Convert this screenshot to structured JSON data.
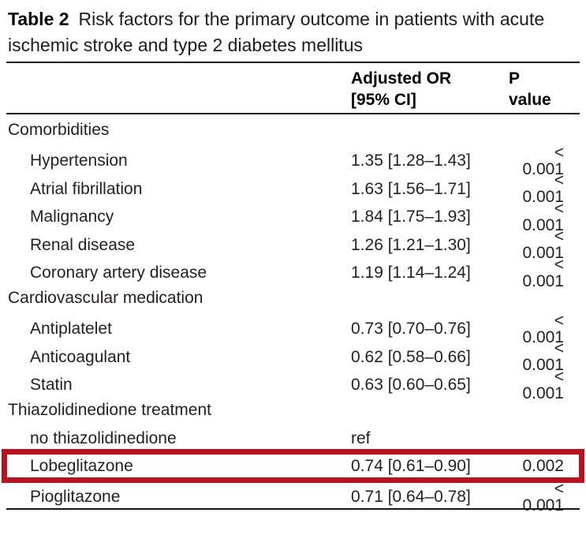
{
  "page": {
    "table_label": "Table 2",
    "table_title": "Risk factors for the primary outcome in patients with acute ischemic stroke and type 2 diabetes mellitus"
  },
  "header": {
    "col_or": "Adjusted OR\n[95% CI]",
    "col_p": "P\nvalue"
  },
  "rows": [
    {
      "type": "section",
      "label": "Comorbidities",
      "or": "",
      "p": ""
    },
    {
      "type": "item",
      "label": "Hypertension",
      "or": "1.35 [1.28–1.43]",
      "p": "< 0.001"
    },
    {
      "type": "item",
      "label": "Atrial fibrillation",
      "or": "1.63 [1.56–1.71]",
      "p": "< 0.001"
    },
    {
      "type": "item",
      "label": "Malignancy",
      "or": "1.84 [1.75–1.93]",
      "p": "< 0.001"
    },
    {
      "type": "item",
      "label": "Renal disease",
      "or": "1.26 [1.21–1.30]",
      "p": "< 0.001"
    },
    {
      "type": "item",
      "label": "Coronary artery disease",
      "or": "1.19 [1.14–1.24]",
      "p": "< 0.001"
    },
    {
      "type": "section",
      "label": "Cardiovascular medication",
      "or": "",
      "p": ""
    },
    {
      "type": "item",
      "label": "Antiplatelet",
      "or": "0.73 [0.70–0.76]",
      "p": "< 0.001"
    },
    {
      "type": "item",
      "label": "Anticoagulant",
      "or": "0.62 [0.58–0.66]",
      "p": "< 0.001"
    },
    {
      "type": "item",
      "label": "Statin",
      "or": "0.63 [0.60–0.65]",
      "p": "< 0.001"
    },
    {
      "type": "section",
      "label": "Thiazolidinedione treatment",
      "or": "",
      "p": ""
    },
    {
      "type": "item",
      "label": "no thiazolidinedione",
      "or": "ref",
      "p": ""
    },
    {
      "type": "item",
      "label": "Lobeglitazone",
      "or": "0.74 [0.61–0.90]",
      "p": "0.002",
      "highlighted": true
    },
    {
      "type": "item",
      "label": "Pioglitazone",
      "or": "0.71 [0.64–0.78]",
      "p": "< 0.001"
    }
  ],
  "colors": {
    "highlight_box": "#b8121f",
    "text": "#231f20",
    "rule": "#161616"
  }
}
